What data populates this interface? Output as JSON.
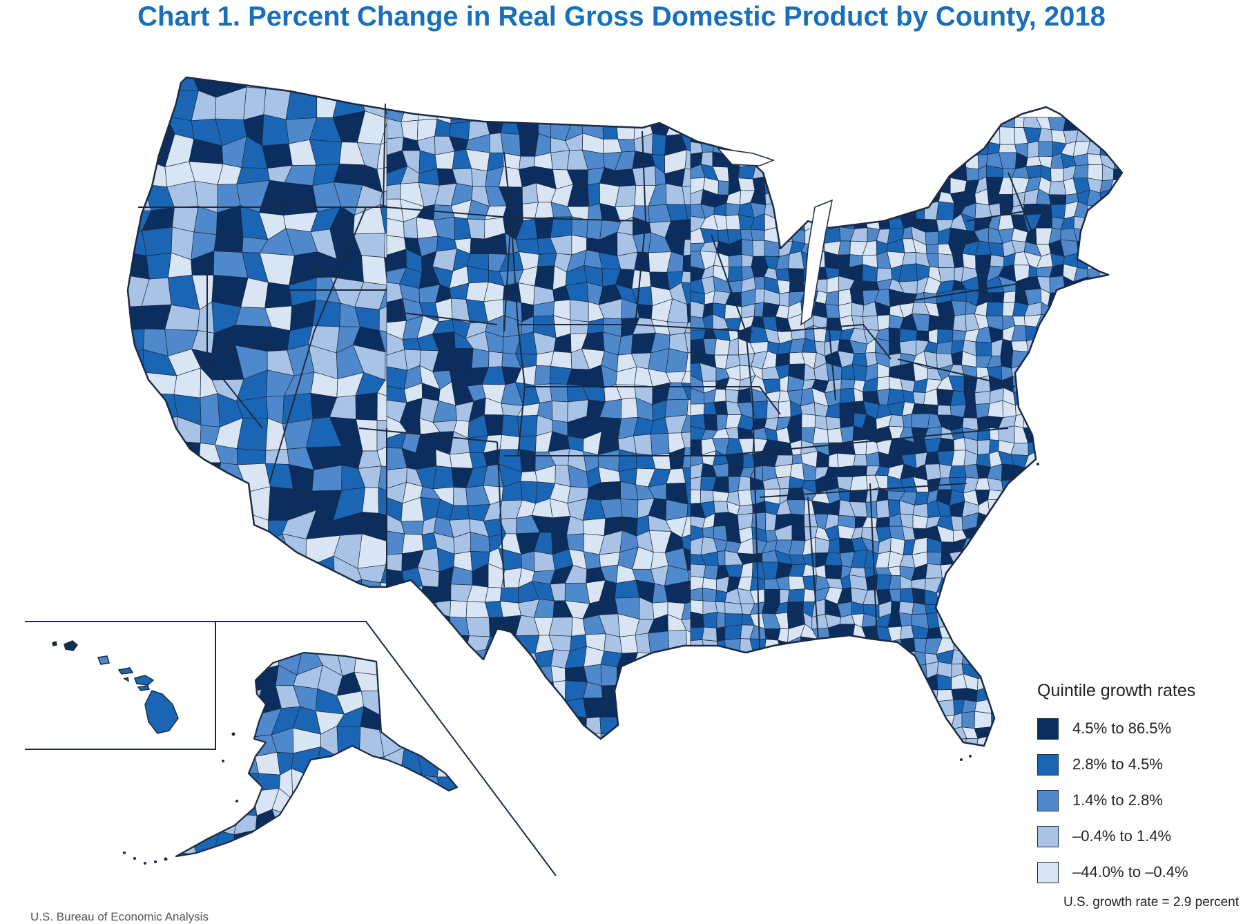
{
  "title": "Chart 1. Percent Change in Real Gross Domestic Product by County, 2018",
  "legend": {
    "title": "Quintile growth rates",
    "items": [
      {
        "label": "4.5% to 86.5%",
        "color": "#0b2e5f"
      },
      {
        "label": "2.8% to 4.5%",
        "color": "#1b65b5"
      },
      {
        "label": "1.4% to 2.8%",
        "color": "#4f89cb"
      },
      {
        "label": "–0.4% to 1.4%",
        "color": "#a8c3e5"
      },
      {
        "label": "–44.0% to –0.4%",
        "color": "#d9e5f3"
      }
    ]
  },
  "note": "U.S. growth rate = 2.9 percent",
  "source": "U.S. Bureau of Economic Analysis",
  "map": {
    "regions": [
      "contiguous-us",
      "alaska-inset",
      "hawaii-inset"
    ],
    "county_colors": [
      "#0b2e5f",
      "#1b65b5",
      "#4f89cb",
      "#a8c3e5",
      "#d9e5f3"
    ],
    "border_color": "#1b2a40"
  }
}
